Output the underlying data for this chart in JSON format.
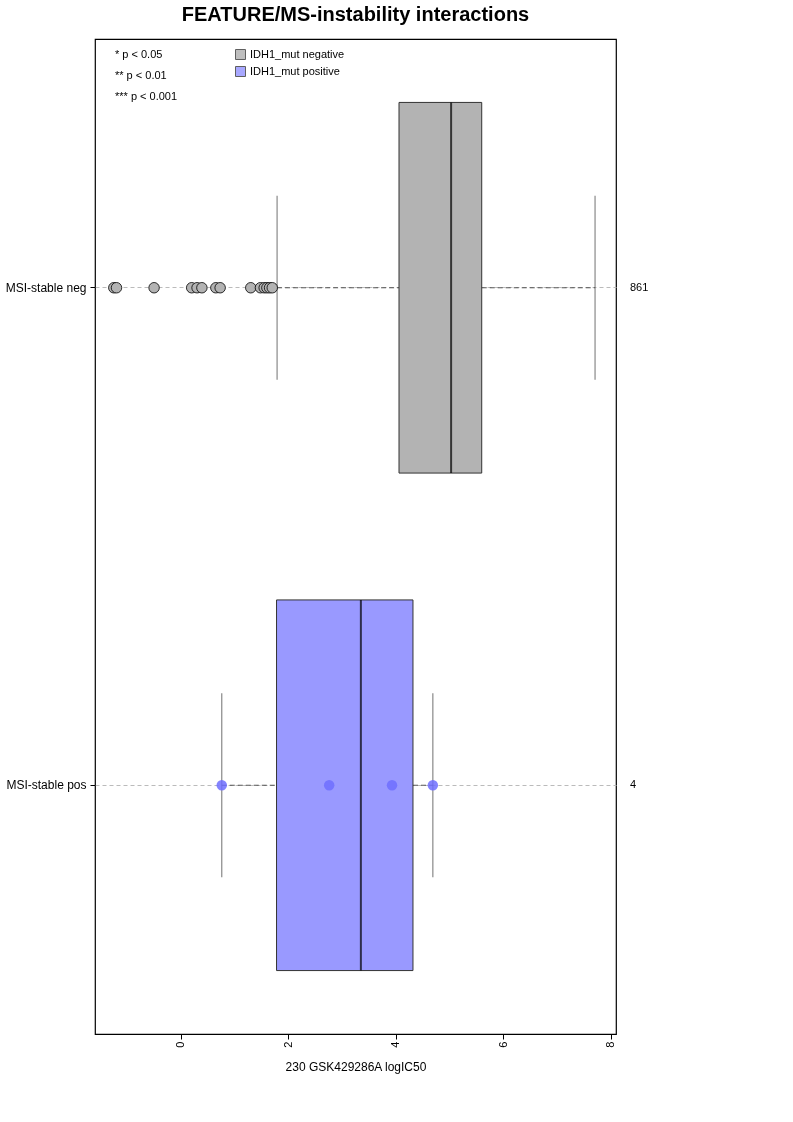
{
  "chart_data": {
    "type": "box",
    "orientation": "horizontal",
    "title": "FEATURE/MS-instability interactions",
    "xlabel": "230 GSK429286A logIC50",
    "categories": [
      "MSI-stable neg",
      "MSI-stable pos"
    ],
    "xlim": [
      -1.6,
      8.1
    ],
    "xticks": [
      0,
      2,
      4,
      6,
      8
    ],
    "grid": "y",
    "legend": "top left",
    "series": [
      {
        "name": "IDH1_mut negative",
        "color": "#b3b3b3",
        "boxes": [
          {
            "low": 1.79,
            "q1": 4.06,
            "median": 5.03,
            "q3": 5.6,
            "high": 7.71,
            "outliers": [
              -1.25,
              -1.2,
              -0.5,
              0.2,
              0.3,
              0.39,
              0.65,
              0.73,
              1.3,
              1.48,
              1.55,
              1.6,
              1.65,
              1.7
            ]
          },
          null
        ]
      },
      {
        "name": "IDH1_mut positive",
        "color": "#9999ff",
        "boxes": [
          null,
          {
            "low": 0.76,
            "q1": 1.78,
            "median": 3.35,
            "q3": 4.32,
            "high": 4.69
          }
        ]
      },
      {
        "type": "scatter",
        "color": "#6f6fff",
        "x": [
          "MSI-stable pos",
          "MSI-stable pos",
          "MSI-stable pos",
          "MSI-stable pos"
        ],
        "values": [
          0.76,
          2.76,
          3.93,
          4.69
        ]
      }
    ],
    "y2_categories": [
      "861",
      "4"
    ],
    "annotations": [
      "* p < 0.05",
      "** p < 0.01",
      "*** p < 0.001"
    ]
  }
}
